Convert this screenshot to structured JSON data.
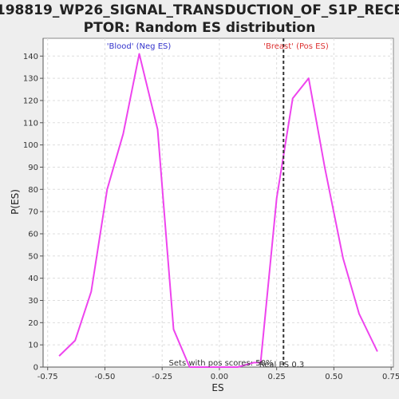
{
  "chart_data": {
    "type": "line",
    "title_line1": "198819_WP26_SIGNAL_TRANSDUCTION_OF_S1P_RECE",
    "title_line2": "PTOR: Random ES distribution",
    "xlabel": "ES",
    "ylabel": "P(ES)",
    "xlim": [
      -0.77,
      0.76
    ],
    "ylim": [
      0,
      148
    ],
    "x_ticks": [
      -0.75,
      -0.5,
      -0.25,
      0.0,
      0.25,
      0.5,
      0.75
    ],
    "x_tick_labels": [
      "-0.75",
      "-0.50",
      "-0.25",
      "0.00",
      "0.25",
      "0.50",
      "0.75"
    ],
    "y_ticks": [
      0,
      10,
      20,
      30,
      40,
      50,
      60,
      70,
      80,
      90,
      100,
      110,
      120,
      130,
      140
    ],
    "grid": true,
    "series_color": "#ee44ee",
    "x": [
      -0.7,
      -0.63,
      -0.56,
      -0.49,
      -0.42,
      -0.35,
      -0.27,
      -0.2,
      -0.13,
      -0.06,
      0.01,
      0.08,
      0.15,
      0.18,
      0.25,
      0.32,
      0.39,
      0.46,
      0.54,
      0.61,
      0.69
    ],
    "y": [
      5,
      12,
      34,
      80,
      105,
      141,
      107,
      17,
      0,
      0,
      0,
      0,
      2,
      2,
      76,
      121,
      130,
      90,
      49,
      24,
      7
    ],
    "real_es": 0.28,
    "annotations": {
      "neg_label": "'Blood' (Neg ES)",
      "neg_color": "#3333cc",
      "pos_label": "'Breast' (Pos ES)",
      "pos_color": "#dd3333",
      "sets_label": "Sets with pos scores: 50%",
      "real_es_label": "Real ES 0.3"
    }
  }
}
